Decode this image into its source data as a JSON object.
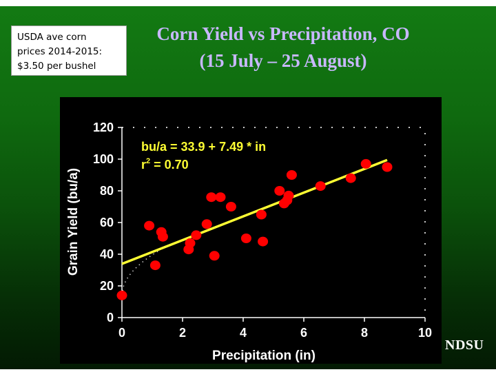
{
  "note": {
    "lines": [
      "USDA ave corn",
      "prices 2014-2015:",
      "$3.50 per bushel"
    ]
  },
  "logo": "NDSU",
  "colors": {
    "points": "#ff0000",
    "fit_line": "#ffff33",
    "title": "#c8b8ff"
  },
  "chart_data": {
    "type": "scatter",
    "title": "Corn Yield vs Precipitation, CO",
    "subtitle": "(15 July – 25 August)",
    "xlabel": "Precipitation (in)",
    "ylabel": "Grain Yield (bu/a)",
    "xlim": [
      0,
      10
    ],
    "ylim": [
      0,
      120
    ],
    "xticks": [
      0,
      2,
      4,
      6,
      8,
      10
    ],
    "yticks": [
      0,
      20,
      40,
      60,
      80,
      100,
      120
    ],
    "xtick_labels": [
      "0",
      "2",
      "4",
      "6",
      "8",
      "10"
    ],
    "ytick_labels": [
      "0",
      "20",
      "40",
      "60",
      "80",
      "100",
      "120"
    ],
    "grid": false,
    "annotation": {
      "equation": "bu/a = 33.9 + 7.49 * in",
      "r2_prefix": "r",
      "r2_sup": "2",
      "r2_value": " = 0.70"
    },
    "fit": {
      "intercept": 33.9,
      "slope": 7.49,
      "x_range": [
        0,
        8.75
      ]
    },
    "points": [
      {
        "x": 0.0,
        "y": 14
      },
      {
        "x": 0.9,
        "y": 58
      },
      {
        "x": 1.1,
        "y": 33
      },
      {
        "x": 1.3,
        "y": 54
      },
      {
        "x": 1.35,
        "y": 51
      },
      {
        "x": 2.2,
        "y": 43
      },
      {
        "x": 2.25,
        "y": 47
      },
      {
        "x": 2.45,
        "y": 52
      },
      {
        "x": 2.8,
        "y": 59
      },
      {
        "x": 2.95,
        "y": 76
      },
      {
        "x": 3.05,
        "y": 39
      },
      {
        "x": 3.25,
        "y": 76
      },
      {
        "x": 3.6,
        "y": 70
      },
      {
        "x": 4.1,
        "y": 50
      },
      {
        "x": 4.6,
        "y": 65
      },
      {
        "x": 4.65,
        "y": 48
      },
      {
        "x": 5.2,
        "y": 80
      },
      {
        "x": 5.35,
        "y": 72
      },
      {
        "x": 5.45,
        "y": 74
      },
      {
        "x": 5.5,
        "y": 77
      },
      {
        "x": 5.6,
        "y": 90
      },
      {
        "x": 6.55,
        "y": 83
      },
      {
        "x": 7.55,
        "y": 88
      },
      {
        "x": 8.05,
        "y": 97
      },
      {
        "x": 8.75,
        "y": 95
      }
    ]
  }
}
